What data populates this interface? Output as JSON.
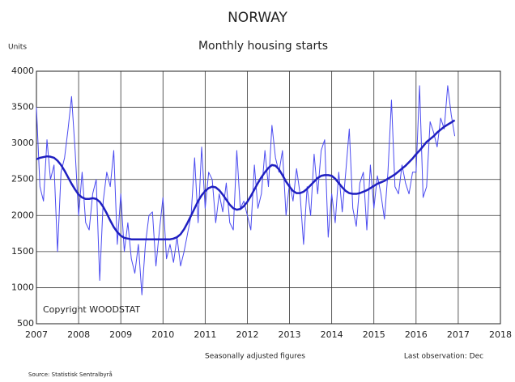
{
  "chart_data": {
    "type": "line",
    "title": "NORWAY",
    "subtitle": "Monthly housing starts",
    "y_label": "Units",
    "annotations": [
      "Copyright WOODSTAT",
      "Seasonally adjusted figures",
      "Last observation: Dec",
      "Source: Statistisk Sentralbyrå"
    ],
    "x": [
      2007,
      2007.083,
      2007.167,
      2007.25,
      2007.333,
      2007.417,
      2007.5,
      2007.583,
      2007.667,
      2007.75,
      2007.833,
      2007.917,
      2008,
      2008.083,
      2008.167,
      2008.25,
      2008.333,
      2008.417,
      2008.5,
      2008.583,
      2008.667,
      2008.75,
      2008.833,
      2008.917,
      2009,
      2009.083,
      2009.167,
      2009.25,
      2009.333,
      2009.417,
      2009.5,
      2009.583,
      2009.667,
      2009.75,
      2009.833,
      2009.917,
      2010,
      2010.083,
      2010.167,
      2010.25,
      2010.333,
      2010.417,
      2010.5,
      2010.583,
      2010.667,
      2010.75,
      2010.833,
      2010.917,
      2011,
      2011.083,
      2011.167,
      2011.25,
      2011.333,
      2011.417,
      2011.5,
      2011.583,
      2011.667,
      2011.75,
      2011.833,
      2011.917,
      2012,
      2012.083,
      2012.167,
      2012.25,
      2012.333,
      2012.417,
      2012.5,
      2012.583,
      2012.667,
      2012.75,
      2012.833,
      2012.917,
      2013,
      2013.083,
      2013.167,
      2013.25,
      2013.333,
      2013.417,
      2013.5,
      2013.583,
      2013.667,
      2013.75,
      2013.833,
      2013.917,
      2014,
      2014.083,
      2014.167,
      2014.25,
      2014.333,
      2014.417,
      2014.5,
      2014.583,
      2014.667,
      2014.75,
      2014.833,
      2014.917,
      2015,
      2015.083,
      2015.167,
      2015.25,
      2015.333,
      2015.417,
      2015.5,
      2015.583,
      2015.667,
      2015.75,
      2015.833,
      2015.917,
      2016,
      2016.083,
      2016.167,
      2016.25,
      2016.333,
      2016.417,
      2016.5,
      2016.583,
      2016.667,
      2016.75,
      2016.833,
      2016.917
    ],
    "series": [
      {
        "color": "#4a4af0",
        "width": 1,
        "values": [
          3500,
          2400,
          2200,
          3050,
          2500,
          2700,
          1500,
          2600,
          2800,
          3200,
          3650,
          2900,
          2000,
          2600,
          1900,
          1800,
          2300,
          2500,
          1100,
          2200,
          2600,
          2400,
          2900,
          1600,
          2300,
          1500,
          1900,
          1400,
          1200,
          1600,
          900,
          1600,
          2000,
          2050,
          1300,
          1800,
          2250,
          1400,
          1600,
          1350,
          1700,
          1300,
          1500,
          1750,
          2000,
          2800,
          1900,
          2950,
          2100,
          2600,
          2500,
          1900,
          2300,
          2050,
          2450,
          1900,
          1800,
          2900,
          2100,
          2200,
          2000,
          1800,
          2700,
          2100,
          2300,
          2900,
          2400,
          3250,
          2800,
          2600,
          2900,
          2000,
          2450,
          2200,
          2650,
          2300,
          1600,
          2400,
          2000,
          2850,
          2300,
          2900,
          3050,
          1700,
          2300,
          1900,
          2600,
          2050,
          2600,
          3200,
          2100,
          1850,
          2450,
          2600,
          1800,
          2700,
          2100,
          2550,
          2300,
          1950,
          2600,
          3600,
          2400,
          2300,
          2700,
          2450,
          2300,
          2600,
          2600,
          3800,
          2250,
          2400,
          3300,
          3150,
          2950,
          3350,
          3200,
          3800,
          3400,
          3100
        ]
      },
      {
        "color": "#1f1fc0",
        "width": 2.5,
        "values": [
          2780,
          2800,
          2810,
          2820,
          2815,
          2800,
          2760,
          2700,
          2620,
          2530,
          2440,
          2360,
          2290,
          2250,
          2230,
          2230,
          2240,
          2230,
          2190,
          2120,
          2030,
          1930,
          1840,
          1770,
          1720,
          1690,
          1680,
          1670,
          1670,
          1670,
          1670,
          1670,
          1670,
          1670,
          1670,
          1670,
          1670,
          1670,
          1670,
          1680,
          1700,
          1740,
          1810,
          1900,
          2000,
          2100,
          2200,
          2280,
          2340,
          2380,
          2400,
          2390,
          2350,
          2290,
          2220,
          2150,
          2100,
          2080,
          2090,
          2130,
          2190,
          2270,
          2360,
          2450,
          2530,
          2600,
          2660,
          2700,
          2690,
          2640,
          2560,
          2470,
          2400,
          2340,
          2310,
          2310,
          2330,
          2370,
          2420,
          2470,
          2520,
          2550,
          2560,
          2560,
          2550,
          2510,
          2450,
          2390,
          2340,
          2310,
          2300,
          2300,
          2310,
          2330,
          2350,
          2380,
          2410,
          2440,
          2460,
          2480,
          2510,
          2540,
          2570,
          2610,
          2650,
          2690,
          2740,
          2790,
          2850,
          2900,
          2960,
          3020,
          3060,
          3100,
          3150,
          3190,
          3230,
          3260,
          3290,
          3320
        ]
      }
    ],
    "xlim": [
      2007,
      2018
    ],
    "xticks": [
      2007,
      2008,
      2009,
      2010,
      2011,
      2012,
      2013,
      2014,
      2015,
      2016,
      2017,
      2018
    ],
    "ylim": [
      500,
      4000
    ],
    "yticks": [
      500,
      1000,
      1500,
      2000,
      2500,
      3000,
      3500,
      4000
    ],
    "grid": true
  }
}
